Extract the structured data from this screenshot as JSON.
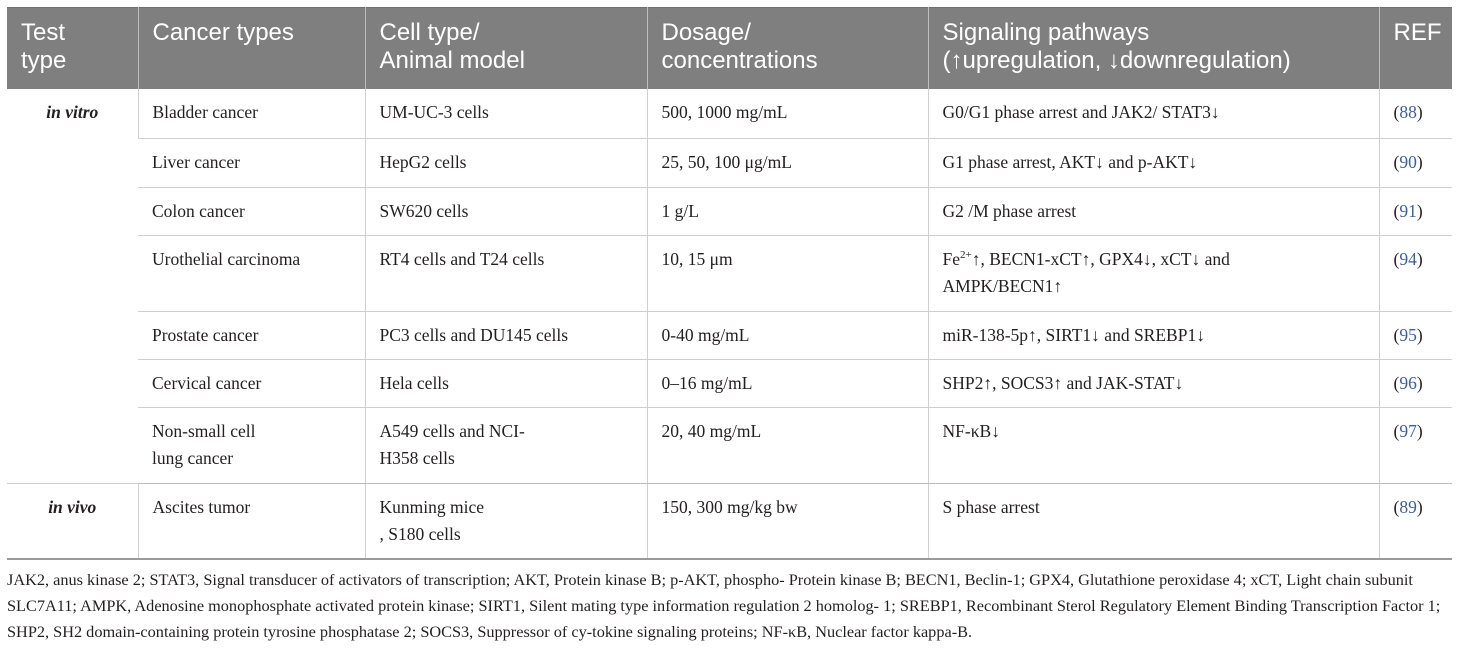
{
  "table": {
    "headers": [
      [
        "Test",
        "type"
      ],
      [
        "Cancer types"
      ],
      [
        "Cell type/",
        "Animal model"
      ],
      [
        "Dosage/",
        "concentrations"
      ],
      [
        "Signaling pathways",
        "(↑upregulation, ↓downregulation)"
      ],
      [
        "REF"
      ]
    ],
    "groups": [
      {
        "test_type": "in vitro",
        "rows": [
          {
            "cancer": [
              "Bladder cancer"
            ],
            "cell": [
              "UM-UC-3 cells"
            ],
            "dosage": "500, 1000 mg/mL",
            "pathway": [
              "G0/G1 phase arrest and JAK2/ STAT3↓"
            ],
            "ref_open": "(",
            "ref_num": "88",
            "ref_close": ")"
          },
          {
            "cancer": [
              "Liver cancer"
            ],
            "cell": [
              "HepG2 cells"
            ],
            "dosage": "25, 50, 100 μg/mL",
            "pathway": [
              "G1 phase arrest, AKT↓ and p-AKT↓"
            ],
            "ref_open": "(",
            "ref_num": "90",
            "ref_close": ")"
          },
          {
            "cancer": [
              "Colon cancer"
            ],
            "cell": [
              "SW620 cells"
            ],
            "dosage": "1 g/L",
            "pathway": [
              "G2 /M phase arrest"
            ],
            "ref_open": "(",
            "ref_num": "91",
            "ref_close": ")"
          },
          {
            "cancer": [
              "Urothelial carcinoma"
            ],
            "cell": [
              "RT4 cells and T24 cells"
            ],
            "dosage": "10, 15 μm",
            "pathway_fe": "Fe",
            "pathway_sup": "2+",
            "pathway": [
              "↑, BECN1-xCT↑, GPX4↓, xCT↓ and",
              "AMPK/BECN1↑"
            ],
            "ref_open": "(",
            "ref_num": "94",
            "ref_close": ")"
          },
          {
            "cancer": [
              "Prostate cancer"
            ],
            "cell": [
              "PC3 cells and DU145 cells"
            ],
            "dosage": "0-40 mg/mL",
            "pathway": [
              "miR-138-5p↑, SIRT1↓ and SREBP1↓"
            ],
            "ref_open": "(",
            "ref_num": "95",
            "ref_close": ")"
          },
          {
            "cancer": [
              "Cervical cancer"
            ],
            "cell": [
              "Hela cells"
            ],
            "dosage": "0–16 mg/mL",
            "pathway": [
              "SHP2↑, SOCS3↑ and JAK-STAT↓"
            ],
            "ref_open": "(",
            "ref_num": "96",
            "ref_close": ")"
          },
          {
            "cancer": [
              "Non-small cell",
              "lung cancer"
            ],
            "cell": [
              "A549 cells and NCI-",
              "H358 cells"
            ],
            "dosage": "20, 40 mg/mL",
            "pathway": [
              "NF-κB↓"
            ],
            "ref_open": "(",
            "ref_num": "97",
            "ref_close": ")"
          }
        ]
      },
      {
        "test_type": "in vivo",
        "rows": [
          {
            "cancer": [
              "Ascites tumor"
            ],
            "cell": [
              "Kunming mice",
              ", S180 cells"
            ],
            "dosage": "150, 300 mg/kg bw",
            "pathway": [
              "S phase arrest"
            ],
            "ref_open": "(",
            "ref_num": "89",
            "ref_close": ")"
          }
        ]
      }
    ]
  },
  "footnote": "JAK2, anus kinase 2; STAT3, Signal transducer of activators of transcription; AKT, Protein kinase B; p-AKT, phospho- Protein kinase B; BECN1, Beclin-1; GPX4, Glutathione peroxidase 4; xCT, Light chain subunit SLC7A11; AMPK, Adenosine monophosphate activated protein kinase; SIRT1, Silent mating type information regulation 2 homolog- 1; SREBP1, Recombinant Sterol Regulatory Element Binding Transcription Factor 1; SHP2, SH2 domain-containing protein tyrosine phosphatase 2; SOCS3, Suppressor of cy-tokine signaling proteins; NF-κB, Nuclear factor kappa-B.",
  "colors": {
    "header_bg": "#7f7f7f",
    "header_text": "#ffffff",
    "ref_link": "#3b5ea8",
    "body_text": "#231f20"
  }
}
